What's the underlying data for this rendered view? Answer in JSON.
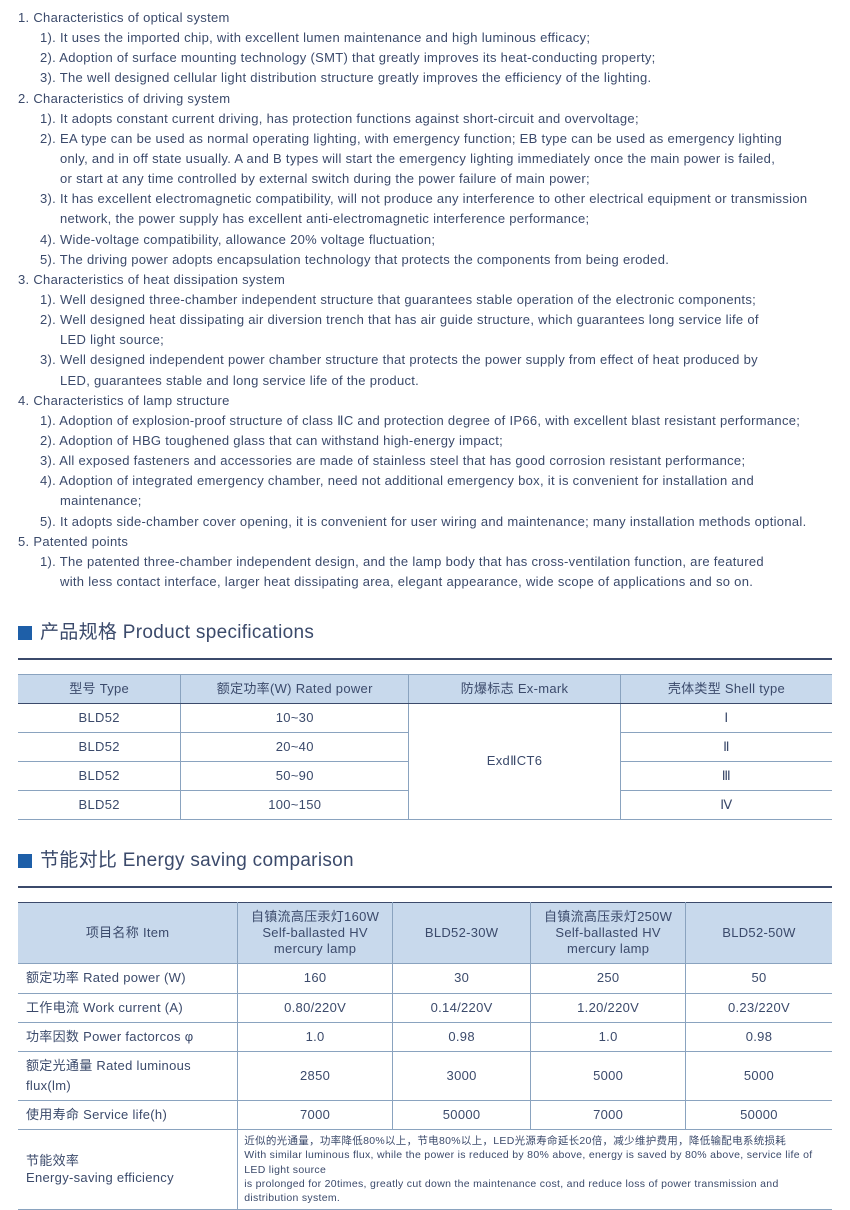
{
  "characteristics": {
    "s1": {
      "title": "1. Characteristics of optical system",
      "i1": "1). It uses the imported chip, with excellent lumen maintenance and high luminous efficacy;",
      "i2": "2). Adoption of surface mounting technology (SMT) that greatly improves its heat-conducting property;",
      "i3": "3). The well designed cellular light distribution structure greatly improves the efficiency of the lighting."
    },
    "s2": {
      "title": "2. Characteristics of driving system",
      "i1": "1). It adopts constant current driving, has protection functions against short-circuit and overvoltage;",
      "i2a": "2). EA type can be used as normal operating lighting, with emergency function; EB type can be used as emergency lighting",
      "i2b": "only, and in off state usually. A and B types will start the emergency lighting immediately once the main power is failed,",
      "i2c": "or start at any time controlled by external switch during the power failure of main power;",
      "i3a": "3). It has excellent electromagnetic compatibility, will not produce any interference to other electrical equipment or transmission",
      "i3b": "network, the power supply has excellent anti-electromagnetic interference performance;",
      "i4": "4). Wide-voltage compatibility, allowance 20% voltage fluctuation;",
      "i5": "5). The driving power adopts encapsulation technology that protects the components from being eroded."
    },
    "s3": {
      "title": "3. Characteristics of heat dissipation system",
      "i1": "1). Well designed three-chamber independent structure that guarantees stable operation of the electronic components;",
      "i2a": "2). Well designed heat dissipating air diversion trench that has air guide structure, which guarantees long service life of",
      "i2b": "LED light source;",
      "i3a": "3). Well designed independent power chamber structure that protects the power supply from effect of heat produced by",
      "i3b": "LED, guarantees stable and long service life of the product."
    },
    "s4": {
      "title": "4. Characteristics of lamp structure",
      "i1": "1). Adoption of explosion-proof structure of class ⅡC and protection degree of IP66, with excellent blast resistant performance;",
      "i2": "2). Adoption of HBG toughened glass that can withstand high-energy impact;",
      "i3": "3). All exposed fasteners and accessories are made of stainless steel that has good corrosion resistant performance;",
      "i4a": "4). Adoption of integrated emergency chamber, need not additional emergency box, it is convenient for installation and",
      "i4b": "maintenance;",
      "i5": "5). It adopts side-chamber cover opening, it is convenient for user wiring and maintenance; many installation methods optional."
    },
    "s5": {
      "title": "5. Patented points",
      "i1a": "1). The patented three-chamber independent design, and the lamp body that has cross-ventilation function, are featured",
      "i1b": "with less contact interface, larger heat dissipating area, elegant appearance, wide scope of applications and so on."
    }
  },
  "spec_title": "产品规格 Product specifications",
  "spec_table": {
    "headers": {
      "c1": "型号 Type",
      "c2": "额定功率(W)  Rated power",
      "c3": "防爆标志  Ex-mark",
      "c4": "壳体类型  Shell type"
    },
    "r1": {
      "c1": "BLD52",
      "c2": "10~30",
      "c4": "Ⅰ"
    },
    "r2": {
      "c1": "BLD52",
      "c2": "20~40",
      "c4": "Ⅱ"
    },
    "r3": {
      "c1": "BLD52",
      "c2": "50~90",
      "c4": "Ⅲ"
    },
    "r4": {
      "c1": "BLD52",
      "c2": "100~150",
      "c4": "Ⅳ"
    },
    "exmark": "ExdⅡCT6"
  },
  "energy_title": "节能对比 Energy saving comparison",
  "energy_table": {
    "headers": {
      "c1": "项目名称  Item",
      "c2": "自镇流高压汞灯160W\nSelf-ballasted HV\nmercury lamp",
      "c3": "BLD52-30W",
      "c4": "自镇流高压汞灯250W\nSelf-ballasted HV\nmercury lamp",
      "c5": "BLD52-50W"
    },
    "rows": {
      "r1": {
        "label": "额定功率  Rated power (W)",
        "v1": "160",
        "v2": "30",
        "v3": "250",
        "v4": "50"
      },
      "r2": {
        "label": "工作电流  Work current (A)",
        "v1": "0.80/220V",
        "v2": "0.14/220V",
        "v3": "1.20/220V",
        "v4": "0.23/220V"
      },
      "r3": {
        "label": "功率因数  Power factorcos φ",
        "v1": "1.0",
        "v2": "0.98",
        "v3": "1.0",
        "v4": "0.98"
      },
      "r4": {
        "label": "额定光通量  Rated luminous flux(lm)",
        "v1": "2850",
        "v2": "3000",
        "v3": "5000",
        "v4": "5000"
      },
      "r5": {
        "label": "使用寿命  Service life(h)",
        "v1": "7000",
        "v2": "50000",
        "v3": "7000",
        "v4": "50000"
      }
    },
    "eff_label": "节能效率\nEnergy-saving efficiency",
    "eff_note": "近似的光通量，功率降低80%以上，节电80%以上，LED光源寿命延长20倍，减少维护费用，降低输配电系统损耗\nWith similar luminous flux, while the power is reduced by 80% above, energy is saved by 80% above, service life of LED light source\nis prolonged for 20times, greatly cut down the maintenance cost, and reduce loss of power transmission and distribution system."
  },
  "colors": {
    "text": "#3b4a6b",
    "accent": "#1e5fa8",
    "header_bg": "#c8d9ec",
    "border": "#8aa3bf"
  }
}
